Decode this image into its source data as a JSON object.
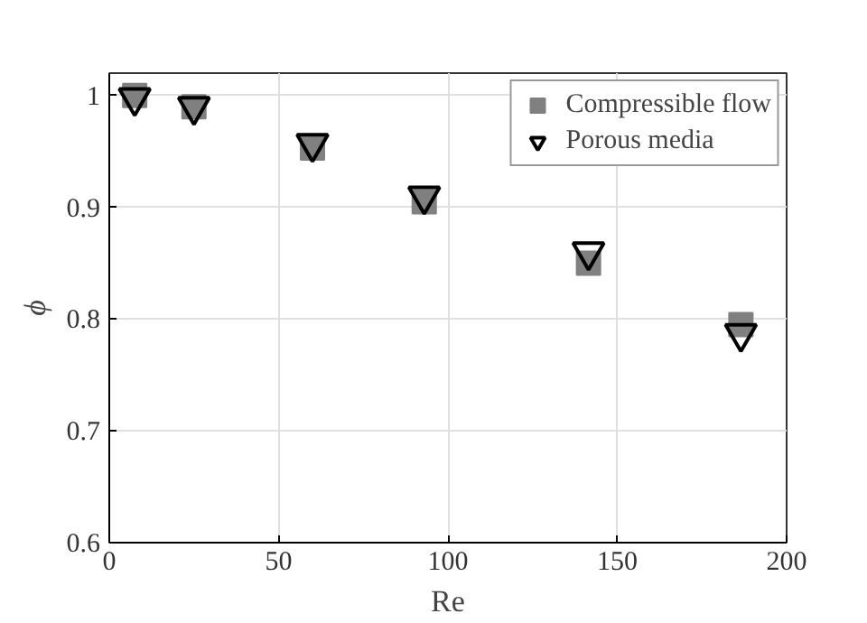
{
  "chart_data": {
    "type": "scatter",
    "xlabel": "Re",
    "ylabel": "ϕ",
    "xlim": [
      0,
      200
    ],
    "xticks": [
      0,
      50,
      100,
      150,
      200
    ],
    "ylim": [
      0.6,
      1.02
    ],
    "yticks": [
      {
        "value": 0.6,
        "label": "0.6"
      },
      {
        "value": 0.7,
        "label": "0.7"
      },
      {
        "value": 0.8,
        "label": "0.8"
      },
      {
        "value": 0.9,
        "label": "0.9"
      },
      {
        "value": 1,
        "label": "1"
      }
    ],
    "grid": true,
    "legend": "top right",
    "series": [
      {
        "name": "Compressible flow",
        "color": "#808080",
        "marker": "square",
        "x": [
          7.5,
          25,
          60,
          93,
          141.5,
          186.5
        ],
        "values": [
          1.0,
          0.99,
          0.953,
          0.905,
          0.85,
          0.795
        ]
      },
      {
        "name": "Porous media",
        "color": "#000000",
        "marker": "triangle",
        "x": [
          7.5,
          25,
          60,
          93,
          141.5,
          186.5
        ],
        "values": [
          0.998,
          0.99,
          0.957,
          0.91,
          0.86,
          0.787
        ]
      }
    ]
  }
}
